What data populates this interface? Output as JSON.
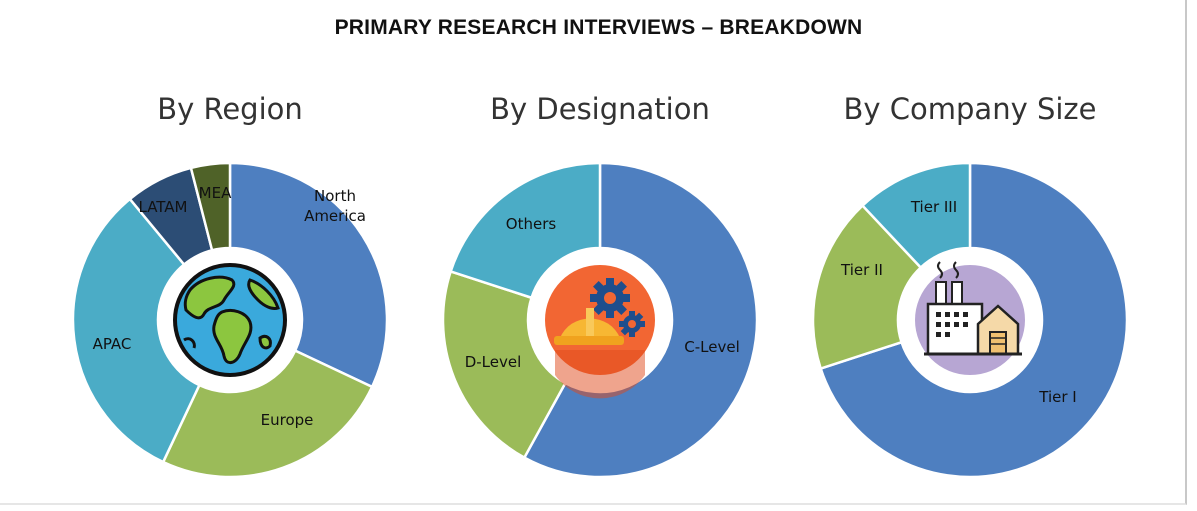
{
  "title": "PRIMARY RESEARCH INTERVIEWS – BREAKDOWN",
  "chart_data": [
    {
      "type": "pie",
      "title": "By Region",
      "categories": [
        "North America",
        "Europe",
        "APAC",
        "LATAM",
        "MEA"
      ],
      "values": [
        32,
        25,
        32,
        7,
        4
      ],
      "colors": [
        "#4e7fc0",
        "#9bbb59",
        "#4bacc6",
        "#2c4d75",
        "#4f6228"
      ],
      "center_icon": "globe-icon"
    },
    {
      "type": "pie",
      "title": "By Designation",
      "categories": [
        "C-Level",
        "D-Level",
        "Others"
      ],
      "values": [
        58,
        22,
        20
      ],
      "colors": [
        "#4e7fc0",
        "#9bbb59",
        "#4bacc6"
      ],
      "center_icon": "hardhat-gears-icon"
    },
    {
      "type": "pie",
      "title": "By Company Size",
      "categories": [
        "Tier I",
        "Tier II",
        "Tier III"
      ],
      "values": [
        70,
        18,
        12
      ],
      "colors": [
        "#4e7fc0",
        "#9bbb59",
        "#4bacc6"
      ],
      "center_icon": "factory-icon"
    }
  ]
}
